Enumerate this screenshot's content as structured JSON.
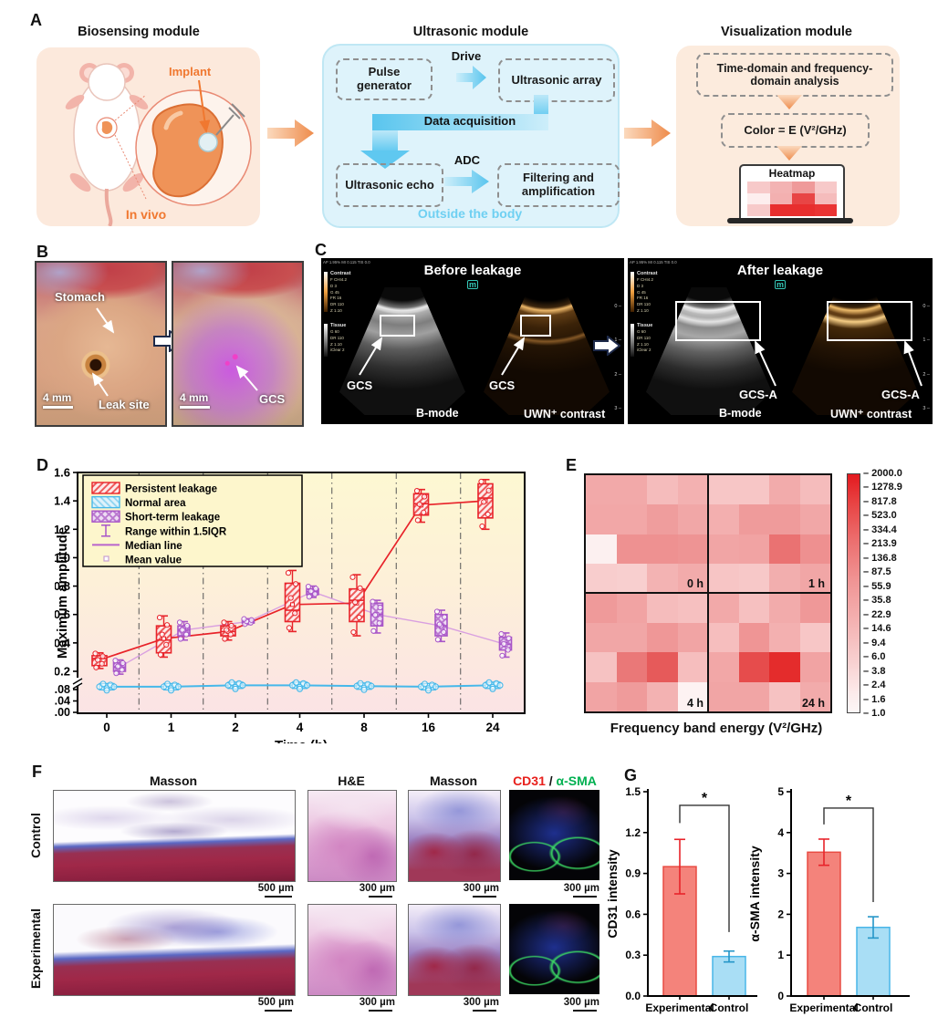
{
  "panel_a": {
    "label": "A",
    "biosensing": {
      "title": "Biosensing module",
      "implant": "Implant",
      "in_vivo": "In vivo"
    },
    "ultrasonic": {
      "title": "Ultrasonic module",
      "pulse_generator": "Pulse generator",
      "drive": "Drive",
      "ultrasonic_array": "Ultrasonic array",
      "data_acquisition": "Data acquisition",
      "ultrasonic_echo": "Ultrasonic echo",
      "adc": "ADC",
      "filtering": "Filtering and amplification",
      "outside": "Outside the body"
    },
    "visualization": {
      "title": "Visualization module",
      "analysis_box": "Time-domain and frequency-domain analysis",
      "color_box": "Color = E (V²/GHz)",
      "heatmap_label": "Heatmap",
      "mini_heatmap": [
        [
          "#f7c9c9",
          "#f3b3b3",
          "#ef9a9a",
          "#f7c9c9"
        ],
        [
          "#fdeeee",
          "#f3b0b0",
          "#e84545",
          "#f5bcbc"
        ],
        [
          "#f7caca",
          "#e82e2e",
          "#e82e2e",
          "#ea3434"
        ]
      ]
    }
  },
  "panel_b": {
    "label": "B",
    "photo1": {
      "label1": "Stomach",
      "label2": "Leak site",
      "scale": "4 mm"
    },
    "photo2": {
      "label1": "GCS",
      "scale": "4 mm"
    }
  },
  "panel_c": {
    "label": "C",
    "before": {
      "title": "Before leakage",
      "marker": "GCS",
      "mode_b": "B-mode",
      "mode_c": "UWN⁺ contrast"
    },
    "after": {
      "title": "After leakage",
      "marker": "GCS-A",
      "mode_b": "B-mode",
      "mode_c": "UWN⁺ contrast"
    },
    "osd": {
      "header": "AP 1.95%  MI 0.115  TIS 0.0",
      "contrast_title": "Contrast",
      "contrast_lines": [
        "F CHI4.2",
        "D 3",
        "G 45",
        "FR 16",
        "DR 110",
        "Z 1.10"
      ],
      "tissue_title": "Tissue",
      "tissue_lines": [
        "G 60",
        "DR 110",
        "Z 1.10",
        "iClear 2"
      ],
      "depth_ticks": [
        "0",
        "1",
        "2",
        "3"
      ],
      "m_icon": "m"
    }
  },
  "panel_d": {
    "label": "D"
  },
  "panel_e": {
    "label": "E"
  },
  "panel_f": {
    "label": "F",
    "row_labels": [
      "Control",
      "Experimental"
    ],
    "col1_title": "Masson",
    "col2_title": "H&E",
    "col3_title": "Masson",
    "col4_title_red": "CD31",
    "col4_title_sep": " / ",
    "col4_title_green": "α-SMA",
    "scales": {
      "col1": "500 µm",
      "col2": "300 µm",
      "col3": "300 µm",
      "col4": "300 µm"
    }
  },
  "panel_g": {
    "label": "G"
  },
  "chart_data": [
    {
      "panel": "D",
      "type": "boxplot",
      "xlabel": "Time (h)",
      "ylabel": "Maximum amplitude",
      "categories": [
        "0",
        "1",
        "2",
        "4",
        "8",
        "16",
        "24"
      ],
      "y_axis_break": true,
      "y_ticks_upper": [
        "1.6",
        "1.4",
        "1.2",
        "1.0",
        "0.8",
        "0.6",
        "0.4",
        "0.2"
      ],
      "y_ticks_lower": [
        "0.08",
        "0.04",
        "0.00"
      ],
      "legend": [
        "Persistent leakage",
        "Normal area",
        "Short-term leakage",
        "Range within 1.5IQR",
        "Median line",
        "Mean value"
      ],
      "colors": {
        "persistent": "#e8232a",
        "normal": "#45b8ea",
        "short_term": "#a855c8",
        "short_term_line": "#d9a0e0"
      },
      "series": [
        {
          "name": "Persistent leakage",
          "boxes": [
            {
              "low": 0.22,
              "q1": 0.24,
              "med": 0.29,
              "q3": 0.31,
              "high": 0.33,
              "mean": 0.28
            },
            {
              "low": 0.3,
              "q1": 0.33,
              "med": 0.42,
              "q3": 0.52,
              "high": 0.59,
              "mean": 0.43
            },
            {
              "low": 0.42,
              "q1": 0.45,
              "med": 0.48,
              "q3": 0.52,
              "high": 0.55,
              "mean": 0.48
            },
            {
              "low": 0.48,
              "q1": 0.55,
              "med": 0.63,
              "q3": 0.82,
              "high": 0.91,
              "mean": 0.67
            },
            {
              "low": 0.45,
              "q1": 0.55,
              "med": 0.7,
              "q3": 0.78,
              "high": 0.88,
              "mean": 0.68
            },
            {
              "low": 1.25,
              "q1": 1.3,
              "med": 1.38,
              "q3": 1.45,
              "high": 1.48,
              "mean": 1.37
            },
            {
              "low": 1.2,
              "q1": 1.28,
              "med": 1.42,
              "q3": 1.52,
              "high": 1.55,
              "mean": 1.4
            }
          ]
        },
        {
          "name": "Short-term leakage",
          "boxes": [
            {
              "low": 0.18,
              "q1": 0.2,
              "med": 0.23,
              "q3": 0.26,
              "high": 0.28,
              "mean": 0.23
            },
            {
              "low": 0.42,
              "q1": 0.45,
              "med": 0.49,
              "q3": 0.52,
              "high": 0.55,
              "mean": 0.49
            },
            {
              "low": 0.53,
              "q1": 0.54,
              "med": 0.55,
              "q3": 0.56,
              "high": 0.57,
              "mean": 0.55
            },
            {
              "low": 0.72,
              "q1": 0.74,
              "med": 0.76,
              "q3": 0.78,
              "high": 0.8,
              "mean": 0.76
            },
            {
              "low": 0.47,
              "q1": 0.52,
              "med": 0.6,
              "q3": 0.68,
              "high": 0.7,
              "mean": 0.6
            },
            {
              "low": 0.41,
              "q1": 0.45,
              "med": 0.52,
              "q3": 0.6,
              "high": 0.63,
              "mean": 0.52
            },
            {
              "low": 0.3,
              "q1": 0.35,
              "med": 0.39,
              "q3": 0.44,
              "high": 0.47,
              "mean": 0.39
            }
          ]
        },
        {
          "name": "Normal area",
          "values": [
            0.09,
            0.09,
            0.095,
            0.095,
            0.092,
            0.09,
            0.095
          ]
        }
      ]
    },
    {
      "panel": "E",
      "type": "heatmap",
      "xlabel": "Frequency band energy (V²/GHz)",
      "quadrant_labels": [
        "0 h",
        "1 h",
        "4 h",
        "24 h"
      ],
      "colorbar_ticks": [
        "2000.0",
        "1278.9",
        "817.8",
        "523.0",
        "334.4",
        "213.9",
        "136.8",
        "87.5",
        "55.9",
        "35.8",
        "22.9",
        "14.6",
        "9.4",
        "6.0",
        "3.8",
        "2.4",
        "1.6",
        "1.0"
      ],
      "colorbar_range": [
        1.0,
        2000.0
      ],
      "cells": [
        [
          "#f2a9a9",
          "#f2a9a9",
          "#f5bcbc",
          "#f3b1b1",
          "#f7c6c6",
          "#f7c6c6",
          "#f2abab",
          "#f5bcbc"
        ],
        [
          "#f2a7a7",
          "#f2a7a7",
          "#ef9d9d",
          "#f1a7a7",
          "#f3afaf",
          "#ef9b9b",
          "#ef9b9b",
          "#f1a7a7"
        ],
        [
          "#fcf0f0",
          "#ee9191",
          "#ee9191",
          "#ee9494",
          "#f1a5a5",
          "#f1a3a3",
          "#ea7272",
          "#ee9090"
        ],
        [
          "#f8cdcd",
          "#f8cfcf",
          "#f3b3b3",
          "#f2abab",
          "#f7c5c5",
          "#f7c8c8",
          "#f2aeae",
          "#f1a6a6"
        ],
        [
          "#ef9a9a",
          "#f1a3a3",
          "#f5bcbc",
          "#f6c0c0",
          "#f2a9a9",
          "#f6c0c0",
          "#f2abab",
          "#ef9898"
        ],
        [
          "#f1a6a6",
          "#f1a6a6",
          "#ef9797",
          "#f1a4a4",
          "#f6bebe",
          "#ef9595",
          "#f3b0b0",
          "#f7c6c6"
        ],
        [
          "#f6c2c2",
          "#ea7878",
          "#e65a5a",
          "#f6bebe",
          "#f2a7a7",
          "#e64c4c",
          "#e42c2c",
          "#f1a3a3"
        ],
        [
          "#f1a4a4",
          "#ef9b9b",
          "#f3b2b2",
          "#fdf2f2",
          "#f1a5a5",
          "#f1a5a5",
          "#f6c2c2",
          "#f2abab"
        ]
      ]
    },
    {
      "panel": "G-left",
      "type": "bar",
      "ylabel": "CD31 intensity",
      "categories": [
        "Experimental",
        "Control"
      ],
      "values": [
        0.95,
        0.29
      ],
      "errors": [
        0.2,
        0.04
      ],
      "bar_colors": [
        "#f4837b",
        "#a9def5"
      ],
      "bar_borders": [
        "#e84b42",
        "#49b6e8"
      ],
      "err_colors": [
        "#e8232a",
        "#2596c8"
      ],
      "ylim": [
        0,
        1.5
      ],
      "y_ticks": [
        "0.0",
        "0.3",
        "0.6",
        "0.9",
        "1.2",
        "1.5"
      ],
      "significance": "*",
      "bracket": {
        "y": 1.4,
        "left_drop": 1.27,
        "right_drop": 0.47
      }
    },
    {
      "panel": "G-right",
      "type": "bar",
      "ylabel": "α-SMA intensity",
      "categories": [
        "Experimental",
        "Control"
      ],
      "values": [
        3.52,
        1.68
      ],
      "errors": [
        0.32,
        0.26
      ],
      "bar_colors": [
        "#f4837b",
        "#a9def5"
      ],
      "bar_borders": [
        "#e84b42",
        "#49b6e8"
      ],
      "err_colors": [
        "#e8232a",
        "#2596c8"
      ],
      "ylim": [
        0,
        5
      ],
      "y_ticks": [
        "0",
        "1",
        "2",
        "3",
        "4",
        "5"
      ],
      "significance": "*",
      "bracket": {
        "y": 4.6,
        "left_drop": 4.2,
        "right_drop": 2.3
      }
    }
  ]
}
